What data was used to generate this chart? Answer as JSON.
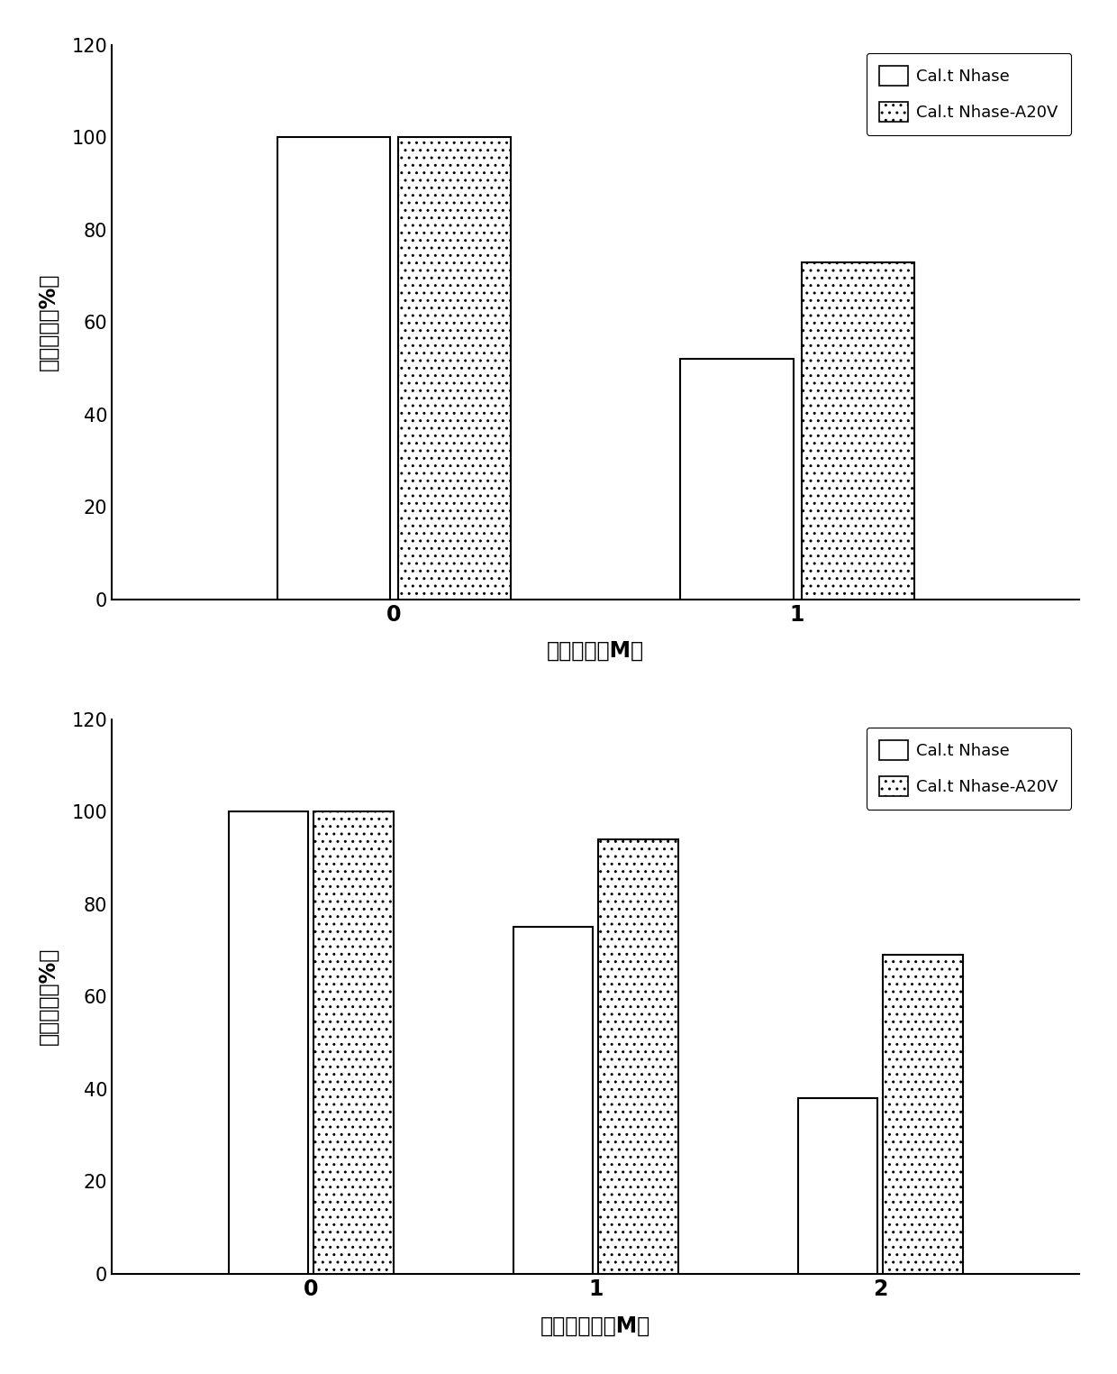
{
  "chart1": {
    "categories": [
      0,
      1
    ],
    "cat_labels": [
      "0",
      "1"
    ],
    "values_nhase": [
      100,
      52
    ],
    "values_mutant": [
      100,
      73
    ],
    "xlabel": "烟腌浓度（M）",
    "ylabel": "相对酶活（%）",
    "ylim": [
      0,
      120
    ],
    "yticks": [
      0,
      20,
      40,
      60,
      80,
      100,
      120
    ],
    "legend1": "Cal.t Nhase",
    "legend2": "Cal.t Nhase-A20V"
  },
  "chart2": {
    "categories": [
      0,
      1,
      2
    ],
    "cat_labels": [
      "0",
      "1",
      "2"
    ],
    "values_nhase": [
      100,
      75,
      38
    ],
    "values_mutant": [
      100,
      94,
      69
    ],
    "xlabel": "烟酰胺浓度（M）",
    "ylabel": "相对酶活（%）",
    "ylim": [
      0,
      120
    ],
    "yticks": [
      0,
      20,
      40,
      60,
      80,
      100,
      120
    ],
    "legend1": "Cal.t Nhase",
    "legend2": "Cal.t Nhase-A20V"
  },
  "bar_width": 0.28,
  "bar_gap": 0.02,
  "edgecolor": "#000000",
  "fontsize_label": 17,
  "fontsize_tick": 15,
  "fontsize_legend": 13,
  "hatch_pattern": ".."
}
